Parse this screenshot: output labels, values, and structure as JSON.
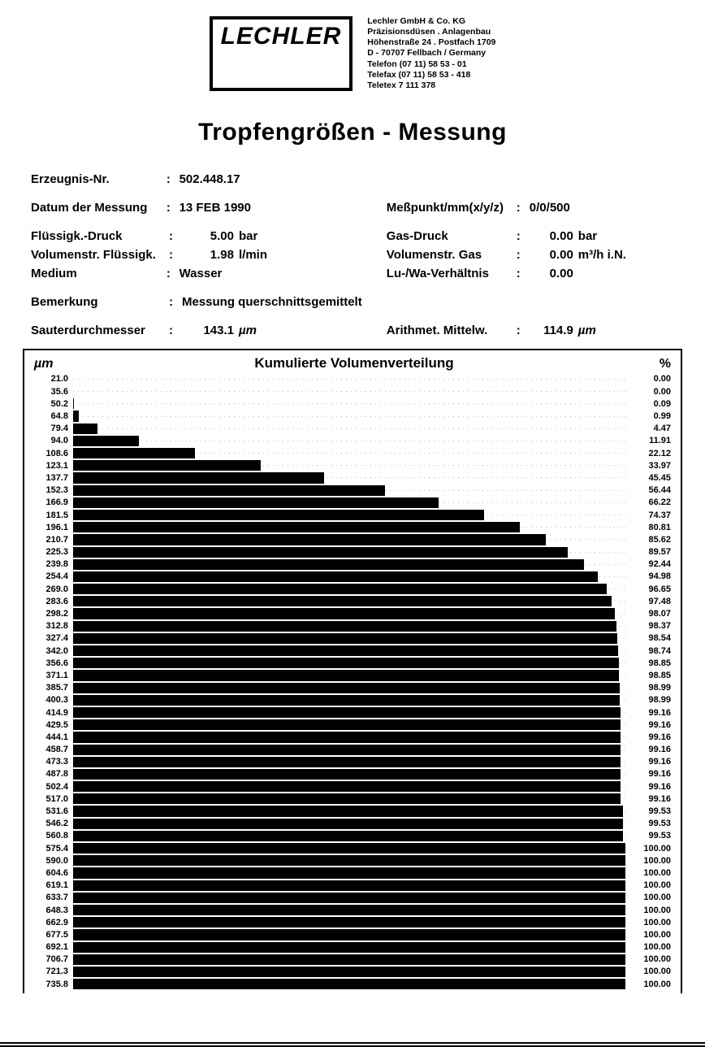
{
  "company": {
    "logo_text": "LECHLER",
    "lines": "Lechler GmbH & Co. KG\nPräzisionsdüsen . Anlagenbau\nHöhenstraße 24 . Postfach 1709\nD - 70707 Fellbach / Germany\nTelefon (07 11) 58 53 - 01\nTelefax (07 11) 58 53 - 418\nTeletex 7 111 378"
  },
  "title": "Tropfengrößen - Messung",
  "meta": {
    "erzeugnis_label": "Erzeugnis-Nr.",
    "erzeugnis_value": "502.448.17",
    "datum_label": "Datum der Messung",
    "datum_value": "13 FEB 1990",
    "messpunkt_label": "Meßpunkt/mm(x/y/z)",
    "messpunkt_value": "0/0/500",
    "fldruck_label": "Flüssigk.-Druck",
    "fldruck_value": "5.00",
    "fldruck_unit": "bar",
    "gasdruck_label": "Gas-Druck",
    "gasdruck_value": "0.00",
    "gasdruck_unit": "bar",
    "volfl_label": "Volumenstr. Flüssigk.",
    "volfl_value": "1.98",
    "volfl_unit": "l/min",
    "volgas_label": "Volumenstr. Gas",
    "volgas_value": "0.00",
    "volgas_unit": "m³/h i.N.",
    "medium_label": "Medium",
    "medium_value": "Wasser",
    "luwa_label": "Lu-/Wa-Verhältnis",
    "luwa_value": "0.00",
    "bemerk_label": "Bemerkung",
    "bemerk_value": "Messung querschnittsgemittelt",
    "sauter_label": "Sauterdurchmesser",
    "sauter_value": "143.1",
    "sauter_unit": "µm",
    "arith_label": "Arithmet. Mittelw.",
    "arith_value": "114.9",
    "arith_unit": "µm"
  },
  "chart": {
    "type": "bar",
    "title": "Kumulierte Volumenverteilung",
    "left_unit": "µm",
    "right_unit": "%",
    "bar_color": "#000000",
    "background_color": "#ffffff",
    "grid_color": "#bbbbbb",
    "xlim": [
      0,
      100
    ],
    "font_size_labels": 11,
    "font_size_title": 17,
    "rows": [
      {
        "um": "21.0",
        "pct": "0.00",
        "v": 0.0
      },
      {
        "um": "35.6",
        "pct": "0.00",
        "v": 0.0
      },
      {
        "um": "50.2",
        "pct": "0.09",
        "v": 0.09
      },
      {
        "um": "64.8",
        "pct": "0.99",
        "v": 0.99
      },
      {
        "um": "79.4",
        "pct": "4.47",
        "v": 4.47
      },
      {
        "um": "94.0",
        "pct": "11.91",
        "v": 11.91
      },
      {
        "um": "108.6",
        "pct": "22.12",
        "v": 22.12
      },
      {
        "um": "123.1",
        "pct": "33.97",
        "v": 33.97
      },
      {
        "um": "137.7",
        "pct": "45.45",
        "v": 45.45
      },
      {
        "um": "152.3",
        "pct": "56.44",
        "v": 56.44
      },
      {
        "um": "166.9",
        "pct": "66.22",
        "v": 66.22
      },
      {
        "um": "181.5",
        "pct": "74.37",
        "v": 74.37
      },
      {
        "um": "196.1",
        "pct": "80.81",
        "v": 80.81
      },
      {
        "um": "210.7",
        "pct": "85.62",
        "v": 85.62
      },
      {
        "um": "225.3",
        "pct": "89.57",
        "v": 89.57
      },
      {
        "um": "239.8",
        "pct": "92.44",
        "v": 92.44
      },
      {
        "um": "254.4",
        "pct": "94.98",
        "v": 94.98
      },
      {
        "um": "269.0",
        "pct": "96.65",
        "v": 96.65
      },
      {
        "um": "283.6",
        "pct": "97.48",
        "v": 97.48
      },
      {
        "um": "298.2",
        "pct": "98.07",
        "v": 98.07
      },
      {
        "um": "312.8",
        "pct": "98.37",
        "v": 98.37
      },
      {
        "um": "327.4",
        "pct": "98.54",
        "v": 98.54
      },
      {
        "um": "342.0",
        "pct": "98.74",
        "v": 98.74
      },
      {
        "um": "356.6",
        "pct": "98.85",
        "v": 98.85
      },
      {
        "um": "371.1",
        "pct": "98.85",
        "v": 98.85
      },
      {
        "um": "385.7",
        "pct": "98.99",
        "v": 98.99
      },
      {
        "um": "400.3",
        "pct": "98.99",
        "v": 98.99
      },
      {
        "um": "414.9",
        "pct": "99.16",
        "v": 99.16
      },
      {
        "um": "429.5",
        "pct": "99.16",
        "v": 99.16
      },
      {
        "um": "444.1",
        "pct": "99.16",
        "v": 99.16
      },
      {
        "um": "458.7",
        "pct": "99.16",
        "v": 99.16
      },
      {
        "um": "473.3",
        "pct": "99.16",
        "v": 99.16
      },
      {
        "um": "487.8",
        "pct": "99.16",
        "v": 99.16
      },
      {
        "um": "502.4",
        "pct": "99.16",
        "v": 99.16
      },
      {
        "um": "517.0",
        "pct": "99.16",
        "v": 99.16
      },
      {
        "um": "531.6",
        "pct": "99.53",
        "v": 99.53
      },
      {
        "um": "546.2",
        "pct": "99.53",
        "v": 99.53
      },
      {
        "um": "560.8",
        "pct": "99.53",
        "v": 99.53
      },
      {
        "um": "575.4",
        "pct": "100.00",
        "v": 100.0
      },
      {
        "um": "590.0",
        "pct": "100.00",
        "v": 100.0
      },
      {
        "um": "604.6",
        "pct": "100.00",
        "v": 100.0
      },
      {
        "um": "619.1",
        "pct": "100.00",
        "v": 100.0
      },
      {
        "um": "633.7",
        "pct": "100.00",
        "v": 100.0
      },
      {
        "um": "648.3",
        "pct": "100.00",
        "v": 100.0
      },
      {
        "um": "662.9",
        "pct": "100.00",
        "v": 100.0
      },
      {
        "um": "677.5",
        "pct": "100.00",
        "v": 100.0
      },
      {
        "um": "692.1",
        "pct": "100.00",
        "v": 100.0
      },
      {
        "um": "706.7",
        "pct": "100.00",
        "v": 100.0
      },
      {
        "um": "721.3",
        "pct": "100.00",
        "v": 100.0
      },
      {
        "um": "735.8",
        "pct": "100.00",
        "v": 100.0
      }
    ]
  }
}
